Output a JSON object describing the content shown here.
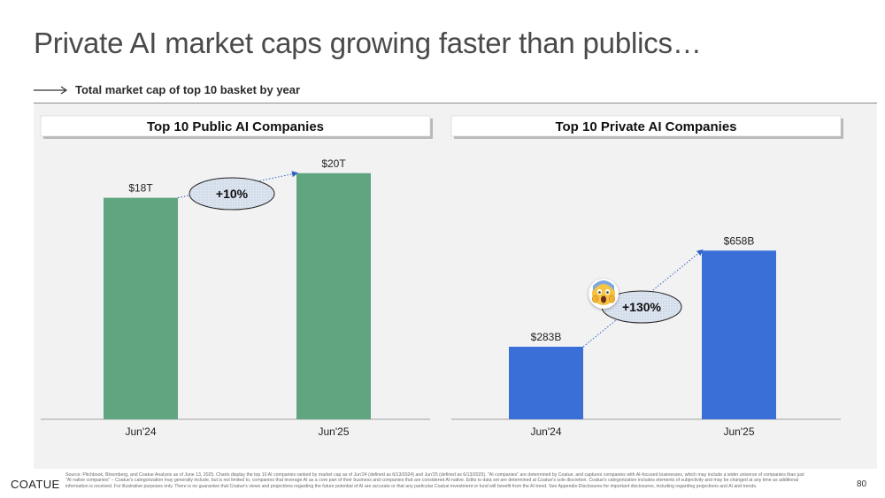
{
  "slide": {
    "title": "Private AI market caps growing faster than publics…",
    "subtitle": "Total market cap of top 10 basket by year",
    "logo": "COATUE",
    "page_number": "80",
    "source_note": "Source: Pitchbook, Bloomberg, and Coatue Analysis as of June 13, 2025. Charts display the top 10 AI companies ranked by market cap as of Jun'24 (defined as 6/13/2024) and Jun'25 (defined as 6/13/2025). \"AI companies\" are determined by Coatue, and captures companies with AI-focused businesses, which may include a wider universe of companies than just \"AI native companies\" – Coatue's categorization may generally include, but is not limited to, companies that leverage AI as a core part of their business and companies that are considered AI-native. Edits to data set are determined at Coatue's sole discretion. Coatue's categorization includes elements of subjectivity and may be changed at any time as additional information is received. For illustrative purposes only. There is no guarantee that Coatue's views and projections regarding the future potential of AI are accurate or that any particular Coatue investment or fund will benefit from the AI trend. See Appendix-Disclosures for important disclosures, including regarding projections and AI and trends."
  },
  "chart_data": [
    {
      "type": "bar",
      "title": "Top 10 Public AI Companies",
      "categories": [
        "Jun'24",
        "Jun'25"
      ],
      "values": [
        18,
        20
      ],
      "unit": "trillion USD",
      "data_labels": [
        "$18T",
        "$20T"
      ],
      "growth_label": "+10%",
      "color": "#5fa57f",
      "ylim": [
        0,
        22.5
      ],
      "grid": false,
      "xlabel": "",
      "ylabel": ""
    },
    {
      "type": "bar",
      "title": "Top 10 Private AI Companies",
      "categories": [
        "Jun'24",
        "Jun'25"
      ],
      "values": [
        283,
        658
      ],
      "unit": "billion USD",
      "data_labels": [
        "$283B",
        "$658B"
      ],
      "growth_label": "+130%",
      "color": "#3b6fd8",
      "ylim": [
        0,
        1080
      ],
      "grid": false,
      "xlabel": "",
      "ylabel": ""
    }
  ],
  "icons": {
    "emoji": "scream-emoji-icon",
    "arrow": "right-arrow-icon"
  }
}
